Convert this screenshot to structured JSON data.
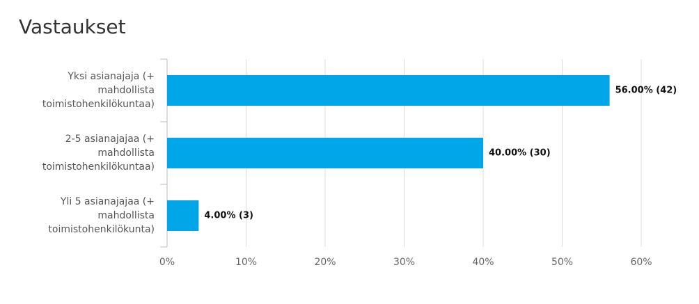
{
  "chart_data": {
    "type": "bar",
    "orientation": "horizontal",
    "title": "Vastaukset",
    "categories": [
      "Yksi asianajaja (+ mahdollista toimistohenkilökuntaa)",
      "2-5 asianajajaa (+ mahdollista toimistohenkilökuntaa)",
      "Yli 5 asianajajaa (+ mahdollista toimistohenkilökunta)"
    ],
    "values": [
      56,
      40,
      4
    ],
    "value_labels": [
      "56.00% (42)",
      "40.00% (30)",
      "4.00% (3)"
    ],
    "color": "#00a6e8",
    "xlim": [
      0,
      60
    ],
    "xticks": [
      {
        "value": 0,
        "label": "0%"
      },
      {
        "value": 10,
        "label": "10%"
      },
      {
        "value": 20,
        "label": "20%"
      },
      {
        "value": 30,
        "label": "30%"
      },
      {
        "value": 40,
        "label": "40%"
      },
      {
        "value": 50,
        "label": "50%"
      },
      {
        "value": 60,
        "label": "60%"
      }
    ],
    "grid": true
  }
}
